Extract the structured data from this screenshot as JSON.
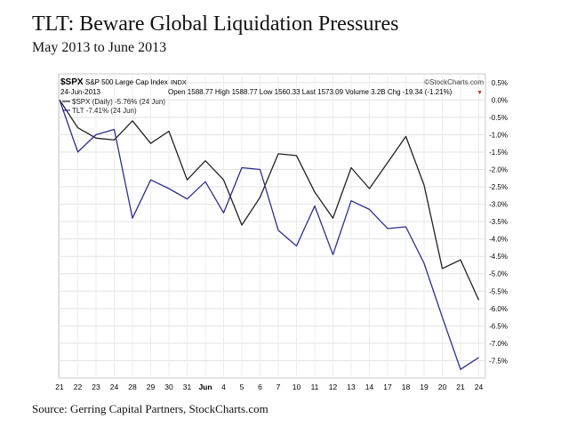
{
  "title": "TLT: Beware Global Liquidation Pressures",
  "subtitle": "May 2013 to June 2013",
  "source": "Source: Gerring Capital Partners, StockCharts.com",
  "header": {
    "symbol": "$SPX",
    "description": "S&P 500 Large Cap Index",
    "exchange": "INDX",
    "watermark": "©StockCharts.com",
    "date": "24-Jun-2013",
    "quote": "Open 1588.77  High 1588.77  Low 1560.33  Last 1573.09  Volume 3.2B  Chg -19.34 (-1.21%)",
    "down_marker": "▼"
  },
  "legend": [
    {
      "label": "$SPX (Daily) -5.76% (24 Jun)",
      "color": "#222222"
    },
    {
      "label": "TLT -7.41% (24 Jun)",
      "color": "#2e2e8c"
    }
  ],
  "chart_data": {
    "type": "line",
    "x": [
      "21",
      "22",
      "23",
      "24",
      "28",
      "29",
      "30",
      "31",
      "Jun",
      "4",
      "5",
      "6",
      "7",
      "10",
      "11",
      "12",
      "13",
      "14",
      "17",
      "18",
      "19",
      "20",
      "21",
      "24"
    ],
    "ylim": [
      -8.0,
      0.75
    ],
    "y_ticks": [
      0.5,
      0.0,
      -0.5,
      -1.0,
      -1.5,
      -2.0,
      -2.5,
      -3.0,
      -3.5,
      -4.0,
      -4.5,
      -5.0,
      -5.5,
      -6.0,
      -6.5,
      -7.0,
      -7.5
    ],
    "y_tick_labels": [
      "0.5%",
      "0.0%",
      "-0.5%",
      "-1.0%",
      "-1.5%",
      "-2.0%",
      "-2.5%",
      "-3.0%",
      "-3.5%",
      "-4.0%",
      "-4.5%",
      "-5.0%",
      "-5.5%",
      "-6.0%",
      "-6.5%",
      "-7.0%",
      "-7.5%"
    ],
    "grid": true,
    "legend_position": "top-left",
    "series": [
      {
        "name": "$SPX (Daily) -5.76% (24 Jun)",
        "color": "#222222",
        "values": [
          0.0,
          -0.8,
          -1.1,
          -1.15,
          -0.6,
          -1.25,
          -0.9,
          -2.3,
          -1.75,
          -2.3,
          -3.6,
          -2.8,
          -1.55,
          -1.6,
          -2.65,
          -3.4,
          -1.95,
          -2.55,
          -1.8,
          -1.05,
          -2.45,
          -4.85,
          -4.6,
          -5.76
        ]
      },
      {
        "name": "TLT -7.41% (24 Jun)",
        "color": "#2e2e8c",
        "values": [
          0.0,
          -1.5,
          -1.0,
          -0.85,
          -3.4,
          -2.3,
          -2.55,
          -2.85,
          -2.35,
          -3.25,
          -1.95,
          -2.0,
          -3.75,
          -4.2,
          -3.05,
          -4.45,
          -2.9,
          -3.15,
          -3.7,
          -3.65,
          -4.7,
          -6.25,
          -7.75,
          -7.41
        ]
      }
    ]
  }
}
